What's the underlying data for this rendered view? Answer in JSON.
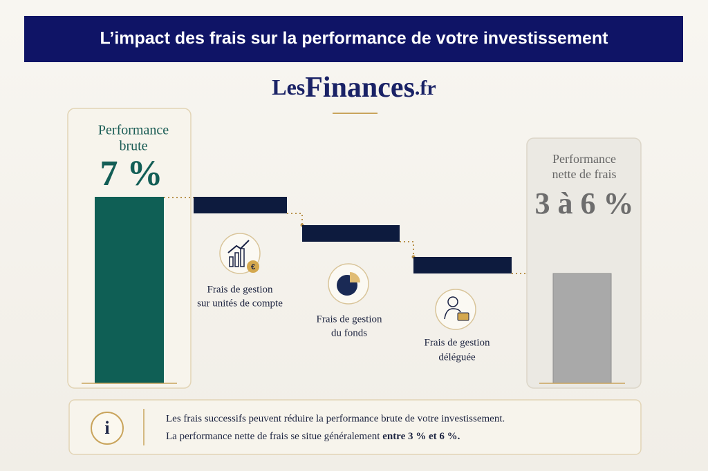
{
  "header": {
    "title": "L’impact des frais sur la performance de votre investissement"
  },
  "brand": {
    "prefix": "Les",
    "name": "Finances",
    "suffix": ".fr"
  },
  "gross": {
    "label_lines": [
      "Performance",
      "brute"
    ],
    "value": "7 %"
  },
  "net": {
    "label_lines": [
      "Performance",
      "nette de frais"
    ],
    "value": "3 à 6 %"
  },
  "fees": [
    {
      "lines": [
        "Frais de gestion",
        "sur unités de compte"
      ]
    },
    {
      "lines": [
        "Frais de gestion",
        "du fonds"
      ]
    },
    {
      "lines": [
        "Frais de gestion",
        "déléguée"
      ]
    }
  ],
  "info": {
    "line1": "Les frais successifs peuvent réduire la performance brute de votre investissement.",
    "line2": "La performance nette de frais se situe généralement ",
    "line2_bold": "entre 3 % et 6 %."
  }
}
